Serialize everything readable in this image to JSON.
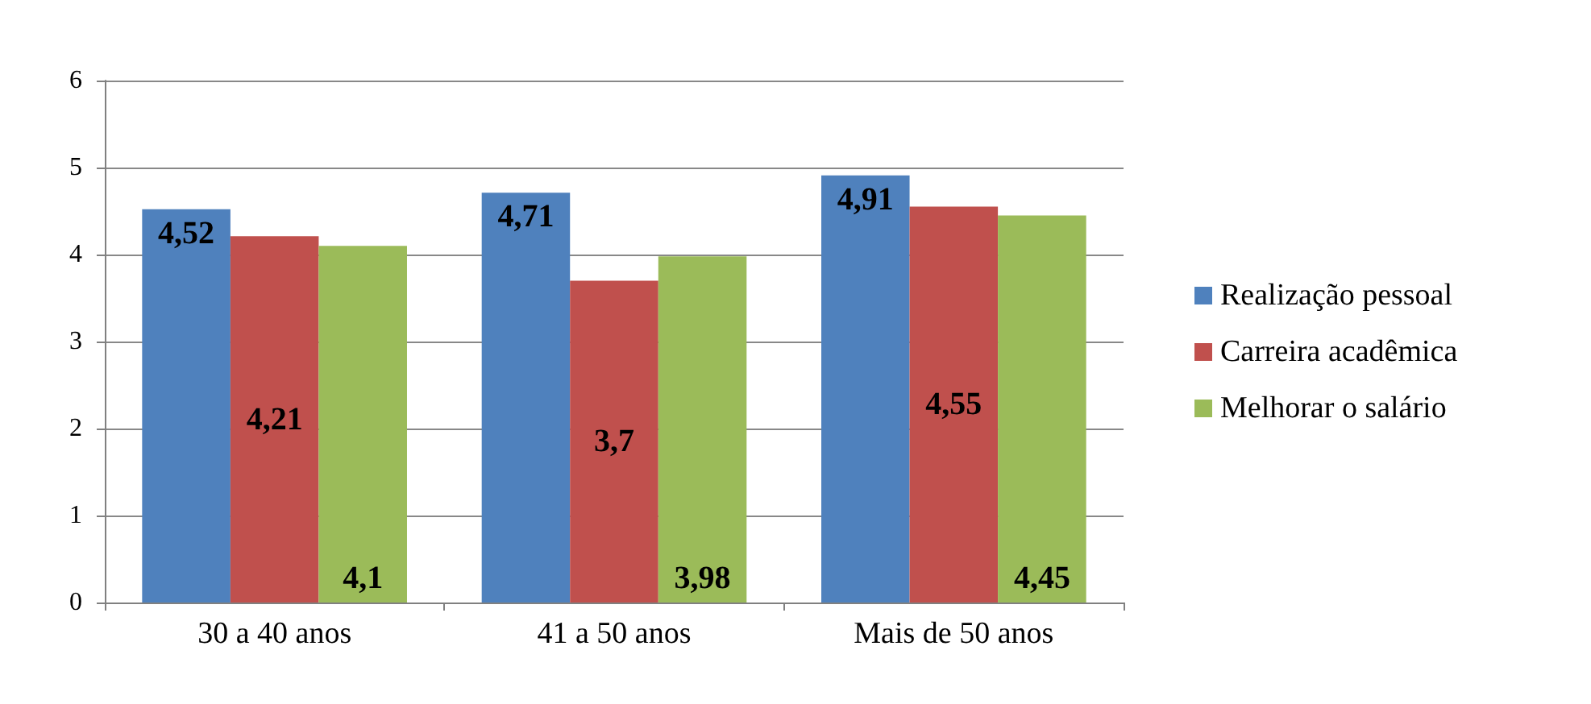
{
  "chart_data": {
    "type": "bar",
    "categories": [
      "30 a 40 anos",
      "41 a 50 anos",
      "Mais de 50 anos"
    ],
    "series": [
      {
        "name": "Realização pessoal",
        "color": "#4f81bd",
        "values": [
          4.52,
          4.71,
          4.91
        ],
        "value_labels": [
          "4,52",
          "4,71",
          "4,91"
        ]
      },
      {
        "name": "Carreira acadêmica",
        "color": "#c0504d",
        "values": [
          4.21,
          3.7,
          4.55
        ],
        "value_labels": [
          "4,21",
          "3,7",
          "4,55"
        ]
      },
      {
        "name": "Melhorar o salário",
        "color": "#9bbb59",
        "values": [
          4.1,
          3.98,
          4.45
        ],
        "value_labels": [
          "4,1",
          "3,98",
          "4,45"
        ]
      }
    ],
    "ylim": [
      0,
      6
    ],
    "yticks": [
      0,
      1,
      2,
      3,
      4,
      5,
      6
    ],
    "grid": "y",
    "legend": "right"
  }
}
